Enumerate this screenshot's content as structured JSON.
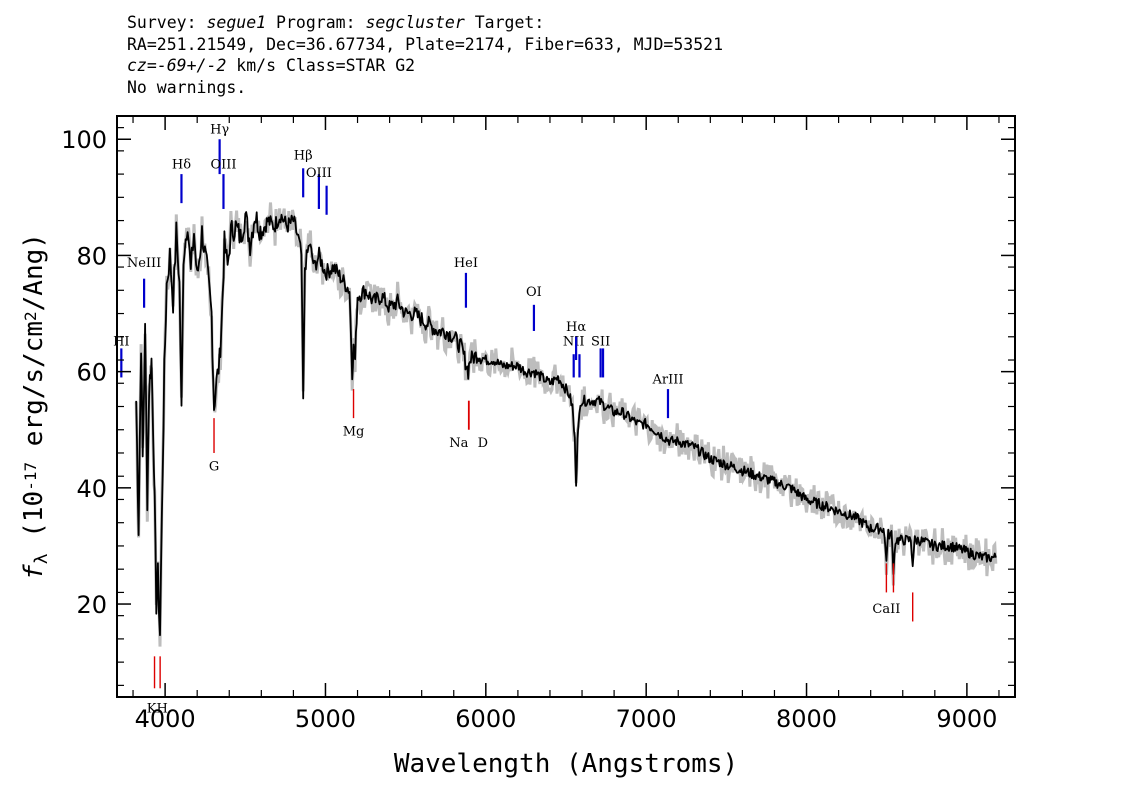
{
  "header": {
    "survey_label": "Survey:",
    "survey": "segue1",
    "program_label": "Program:",
    "program": "segcluster",
    "target_label": "Target:",
    "line2": "RA=251.21549, Dec=36.67734, Plate=2174, Fiber=633, MJD=53521",
    "cz_label": "cz=",
    "cz_value": "-69+/-2",
    "cz_rest": " km/s Class=STAR G2",
    "line4": "No warnings."
  },
  "colors": {
    "flux": "#000000",
    "error": "#bdbdbd",
    "emission": "#0000cc",
    "absorption": "#dd0000"
  },
  "chart_data": {
    "type": "line",
    "title": "",
    "xlabel": "Wavelength (Angstroms)",
    "ylabel": "fλ (10^-17 erg/s/cm^2/Ang)",
    "xlim": [
      3700,
      9300
    ],
    "ylim": [
      4,
      104
    ],
    "x_ticks": [
      4000,
      5000,
      6000,
      7000,
      8000,
      9000
    ],
    "y_ticks": [
      20,
      40,
      60,
      80,
      100
    ],
    "grid": false,
    "series": [
      {
        "points": [
          [
            3820,
            55
          ],
          [
            3835,
            33
          ],
          [
            3850,
            65
          ],
          [
            3860,
            45
          ],
          [
            3875,
            67
          ],
          [
            3889,
            38
          ],
          [
            3900,
            57
          ],
          [
            3915,
            62
          ],
          [
            3930,
            45
          ],
          [
            3945,
            20
          ],
          [
            3955,
            25
          ],
          [
            3968,
            15
          ],
          [
            3980,
            35
          ],
          [
            3995,
            60
          ],
          [
            4010,
            75
          ],
          [
            4030,
            80
          ],
          [
            4050,
            72
          ],
          [
            4070,
            84
          ],
          [
            4090,
            75
          ],
          [
            4102,
            53
          ],
          [
            4115,
            80
          ],
          [
            4140,
            86
          ],
          [
            4160,
            77
          ],
          [
            4180,
            84
          ],
          [
            4200,
            76
          ],
          [
            4230,
            84
          ],
          [
            4260,
            78
          ],
          [
            4290,
            70
          ],
          [
            4305,
            54
          ],
          [
            4320,
            58
          ],
          [
            4340,
            62
          ],
          [
            4355,
            70
          ],
          [
            4370,
            82
          ],
          [
            4390,
            78
          ],
          [
            4410,
            84
          ],
          [
            4440,
            85
          ],
          [
            4470,
            83
          ],
          [
            4500,
            87
          ],
          [
            4530,
            82
          ],
          [
            4560,
            87
          ],
          [
            4600,
            84
          ],
          [
            4640,
            86
          ],
          [
            4680,
            85
          ],
          [
            4720,
            87
          ],
          [
            4760,
            85
          ],
          [
            4800,
            86
          ],
          [
            4830,
            83
          ],
          [
            4850,
            80
          ],
          [
            4861,
            55
          ],
          [
            4872,
            78
          ],
          [
            4900,
            82
          ],
          [
            4930,
            78
          ],
          [
            4960,
            80
          ],
          [
            5000,
            77
          ],
          [
            5050,
            78
          ],
          [
            5100,
            76
          ],
          [
            5150,
            74
          ],
          [
            5167,
            60
          ],
          [
            5175,
            64
          ],
          [
            5185,
            62
          ],
          [
            5200,
            73
          ],
          [
            5250,
            74
          ],
          [
            5300,
            72
          ],
          [
            5350,
            73
          ],
          [
            5400,
            71
          ],
          [
            5450,
            72
          ],
          [
            5500,
            70
          ],
          [
            5550,
            70
          ],
          [
            5600,
            69
          ],
          [
            5650,
            68
          ],
          [
            5700,
            67
          ],
          [
            5750,
            67
          ],
          [
            5800,
            66
          ],
          [
            5850,
            64
          ],
          [
            5890,
            60
          ],
          [
            5900,
            62
          ],
          [
            5950,
            63
          ],
          [
            6000,
            62
          ],
          [
            6050,
            62
          ],
          [
            6100,
            61
          ],
          [
            6150,
            61
          ],
          [
            6200,
            61
          ],
          [
            6250,
            60
          ],
          [
            6300,
            60
          ],
          [
            6350,
            59
          ],
          [
            6400,
            58
          ],
          [
            6450,
            59
          ],
          [
            6500,
            57
          ],
          [
            6520,
            56
          ],
          [
            6540,
            54
          ],
          [
            6555,
            48
          ],
          [
            6563,
            41
          ],
          [
            6572,
            48
          ],
          [
            6590,
            55
          ],
          [
            6650,
            55
          ],
          [
            6700,
            55
          ],
          [
            6750,
            54
          ],
          [
            6800,
            53
          ],
          [
            6850,
            53
          ],
          [
            6900,
            52
          ],
          [
            6950,
            51
          ],
          [
            7000,
            51
          ],
          [
            7050,
            50
          ],
          [
            7100,
            49
          ],
          [
            7150,
            48
          ],
          [
            7200,
            48
          ],
          [
            7300,
            47
          ],
          [
            7400,
            45
          ],
          [
            7500,
            44
          ],
          [
            7600,
            43
          ],
          [
            7700,
            42
          ],
          [
            7800,
            41
          ],
          [
            7900,
            40
          ],
          [
            8000,
            38
          ],
          [
            8100,
            37
          ],
          [
            8200,
            36
          ],
          [
            8300,
            35
          ],
          [
            8400,
            33
          ],
          [
            8480,
            33
          ],
          [
            8498,
            28
          ],
          [
            8510,
            32
          ],
          [
            8530,
            32
          ],
          [
            8542,
            26
          ],
          [
            8555,
            31
          ],
          [
            8600,
            31
          ],
          [
            8650,
            31
          ],
          [
            8662,
            27
          ],
          [
            8675,
            31
          ],
          [
            8700,
            31
          ],
          [
            8800,
            30
          ],
          [
            8900,
            30
          ],
          [
            9000,
            29
          ],
          [
            9100,
            28
          ],
          [
            9180,
            28
          ]
        ]
      }
    ],
    "emission_lines": [
      {
        "label": "Hδ",
        "x": 4102,
        "y1": 89,
        "y2": 94,
        "label_y": 95
      },
      {
        "label": "Hγ",
        "x": 4340,
        "y1": 94,
        "y2": 100,
        "label_y": 101
      },
      {
        "label": "OIII",
        "x": 4364,
        "y1": 88,
        "y2": 94,
        "label_y": 95
      },
      {
        "label": "Hβ",
        "x": 4861,
        "y1": 90,
        "y2": 95,
        "label_y": 96.5
      },
      {
        "label": "OIII",
        "x": 4959,
        "y1": 88,
        "y2": 94,
        "label_y": 93.5
      },
      {
        "label": "OIII",
        "x": 5007,
        "y1": 87,
        "y2": 92
      },
      {
        "label": "HeI",
        "x": 5876,
        "y1": 71,
        "y2": 77,
        "label_y": 78
      },
      {
        "label": "OI",
        "x": 6300,
        "y1": 67,
        "y2": 71.5,
        "label_y": 73
      },
      {
        "label": "NII",
        "x": 6548,
        "y1": 59,
        "y2": 63,
        "label_y": 64.5
      },
      {
        "label": "Hα",
        "x": 6563,
        "y1": 62,
        "y2": 66,
        "label_y": 67
      },
      {
        "label": "NII",
        "x": 6584,
        "y1": 59,
        "y2": 63
      },
      {
        "label": "SII",
        "x": 6716,
        "y1": 59,
        "y2": 64,
        "label_y": 64.5
      },
      {
        "label": "SII",
        "x": 6731,
        "y1": 59,
        "y2": 64
      },
      {
        "label": "ArIII",
        "x": 7136,
        "y1": 52,
        "y2": 57,
        "label_y": 58
      },
      {
        "label": "NeIII",
        "x": 3869,
        "y1": 71,
        "y2": 76,
        "label_y": 78
      },
      {
        "label": "HI",
        "x": 3727,
        "y1": 59,
        "y2": 64,
        "label_y": 64.5
      }
    ],
    "absorption_lines": [
      {
        "label": "K",
        "x": 3934,
        "y1": 5.5,
        "y2": 11
      },
      {
        "label": "H",
        "x": 3969,
        "y1": 5.5,
        "y2": 11
      },
      {
        "label": "G",
        "x": 4305,
        "y1": 46,
        "y2": 52,
        "label_y": 43
      },
      {
        "label": "Mg",
        "x": 5175,
        "y1": 52,
        "y2": 57,
        "label_y": 49
      },
      {
        "label": "Na",
        "x": 5894,
        "y1": 50,
        "y2": 55,
        "label_y": 47
      },
      {
        "label": "D",
        "x": 5894
      },
      {
        "label": "CaII",
        "x": 8498,
        "y1": 22,
        "y2": 27,
        "label_y": 18.5
      },
      {
        "label": "CaII",
        "x": 8542,
        "y1": 22,
        "y2": 27
      },
      {
        "label": "CaII",
        "x": 8662,
        "y1": 17,
        "y2": 22
      }
    ],
    "kh_label": "KH",
    "na_label": "Na",
    "d_label": "D",
    "caii_label": "CaII"
  }
}
